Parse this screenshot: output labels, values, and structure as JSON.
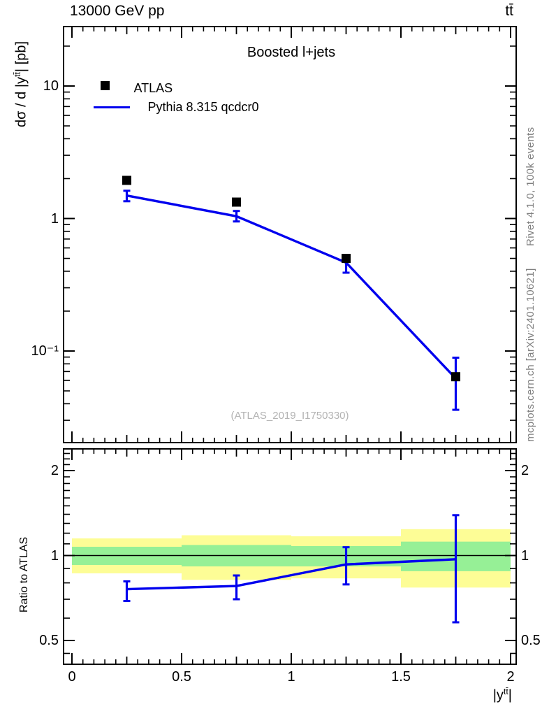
{
  "header": {
    "title_left": "13000 GeV pp",
    "title_right": "tt̄"
  },
  "panel_title": "Boosted l+jets",
  "legend": [
    {
      "label": "ATLAS",
      "marker": "filled-square",
      "color": "#000000"
    },
    {
      "label": "Pythia 8.315 qcdcr0",
      "marker": "line",
      "color": "#0000ee"
    }
  ],
  "watermark": "(ATLAS_2019_I1750330)",
  "side_notes": {
    "top": "Rivet 4.1.0,  100k events",
    "bottom": "mcplots.cern.ch [arXiv:2401.10621]"
  },
  "axes": {
    "x": {
      "label_prefix": "|y",
      "label_sup": "tt̄",
      "label_suffix": "|",
      "tick_values": [
        0,
        0.5,
        1,
        1.5,
        2
      ],
      "tick_labels": [
        "0",
        "0.5",
        "1",
        "1.5",
        "2"
      ]
    },
    "y_main": {
      "label_prefix": "dσ / d |y",
      "label_sup": "tt̄",
      "label_suffix": "| [pb]",
      "tick_values": [
        10,
        1,
        0.1
      ],
      "tick_labels": [
        "10",
        "1",
        "10⁻¹"
      ]
    },
    "y_ratio": {
      "label": "Ratio to ATLAS",
      "tick_values": [
        2,
        1,
        0.5
      ],
      "tick_labels": [
        "2",
        "1",
        "0.5"
      ]
    }
  },
  "colors": {
    "mc_line": "#0000ee",
    "data_marker": "#000000",
    "band_outer": "#fdfd96",
    "band_inner": "#96f096",
    "frame": "#000000",
    "gray_text": "#808080",
    "watermark": "#b3b3b3"
  },
  "chart_data": [
    {
      "type": "line",
      "title": "Boosted l+jets",
      "xlabel": "|y^tt|",
      "ylabel": "dσ / d |y^tt| [pb]",
      "xscale": "linear",
      "yscale": "log",
      "xlim": [
        0,
        2
      ],
      "ylim": [
        0.02,
        28
      ],
      "x": [
        0.25,
        0.75,
        1.25,
        1.75
      ],
      "series": [
        {
          "name": "ATLAS",
          "render": "scatter",
          "marker": "filled-square",
          "color": "#000000",
          "y": [
            1.94,
            1.33,
            0.5,
            0.064
          ]
        },
        {
          "name": "Pythia 8.315 qcdcr0",
          "render": "line+errorbars",
          "color": "#0000ee",
          "y": [
            1.49,
            1.04,
            0.465,
            0.062
          ],
          "y_lo": [
            1.35,
            0.95,
            0.39,
            0.036
          ],
          "y_hi": [
            1.62,
            1.14,
            0.53,
            0.089
          ]
        }
      ],
      "legend_position": "upper-left-inside",
      "grid": false
    },
    {
      "type": "line",
      "title": "",
      "xlabel": "|y^tt|",
      "ylabel": "Ratio to ATLAS",
      "xscale": "linear",
      "yscale": "log",
      "xlim": [
        0,
        2
      ],
      "ylim": [
        0.41,
        2.4
      ],
      "x": [
        0.25,
        0.75,
        1.25,
        1.75
      ],
      "series": [
        {
          "name": "Pythia/ATLAS ratio",
          "render": "line+errorbars",
          "color": "#0000ee",
          "y": [
            0.76,
            0.78,
            0.93,
            0.97
          ],
          "y_lo": [
            0.69,
            0.7,
            0.79,
            0.58
          ],
          "y_hi": [
            0.81,
            0.85,
            1.07,
            1.39
          ]
        }
      ],
      "reference_line": 1,
      "bands": {
        "bin_edges": [
          0,
          0.5,
          1,
          1.5,
          2
        ],
        "outer": [
          [
            0.865,
            1.15
          ],
          [
            0.82,
            1.18
          ],
          [
            0.83,
            1.17
          ],
          [
            0.77,
            1.24
          ]
        ],
        "inner": [
          [
            0.926,
            1.074
          ],
          [
            0.915,
            1.09
          ],
          [
            0.915,
            1.08
          ],
          [
            0.88,
            1.12
          ]
        ]
      },
      "grid": false
    }
  ]
}
